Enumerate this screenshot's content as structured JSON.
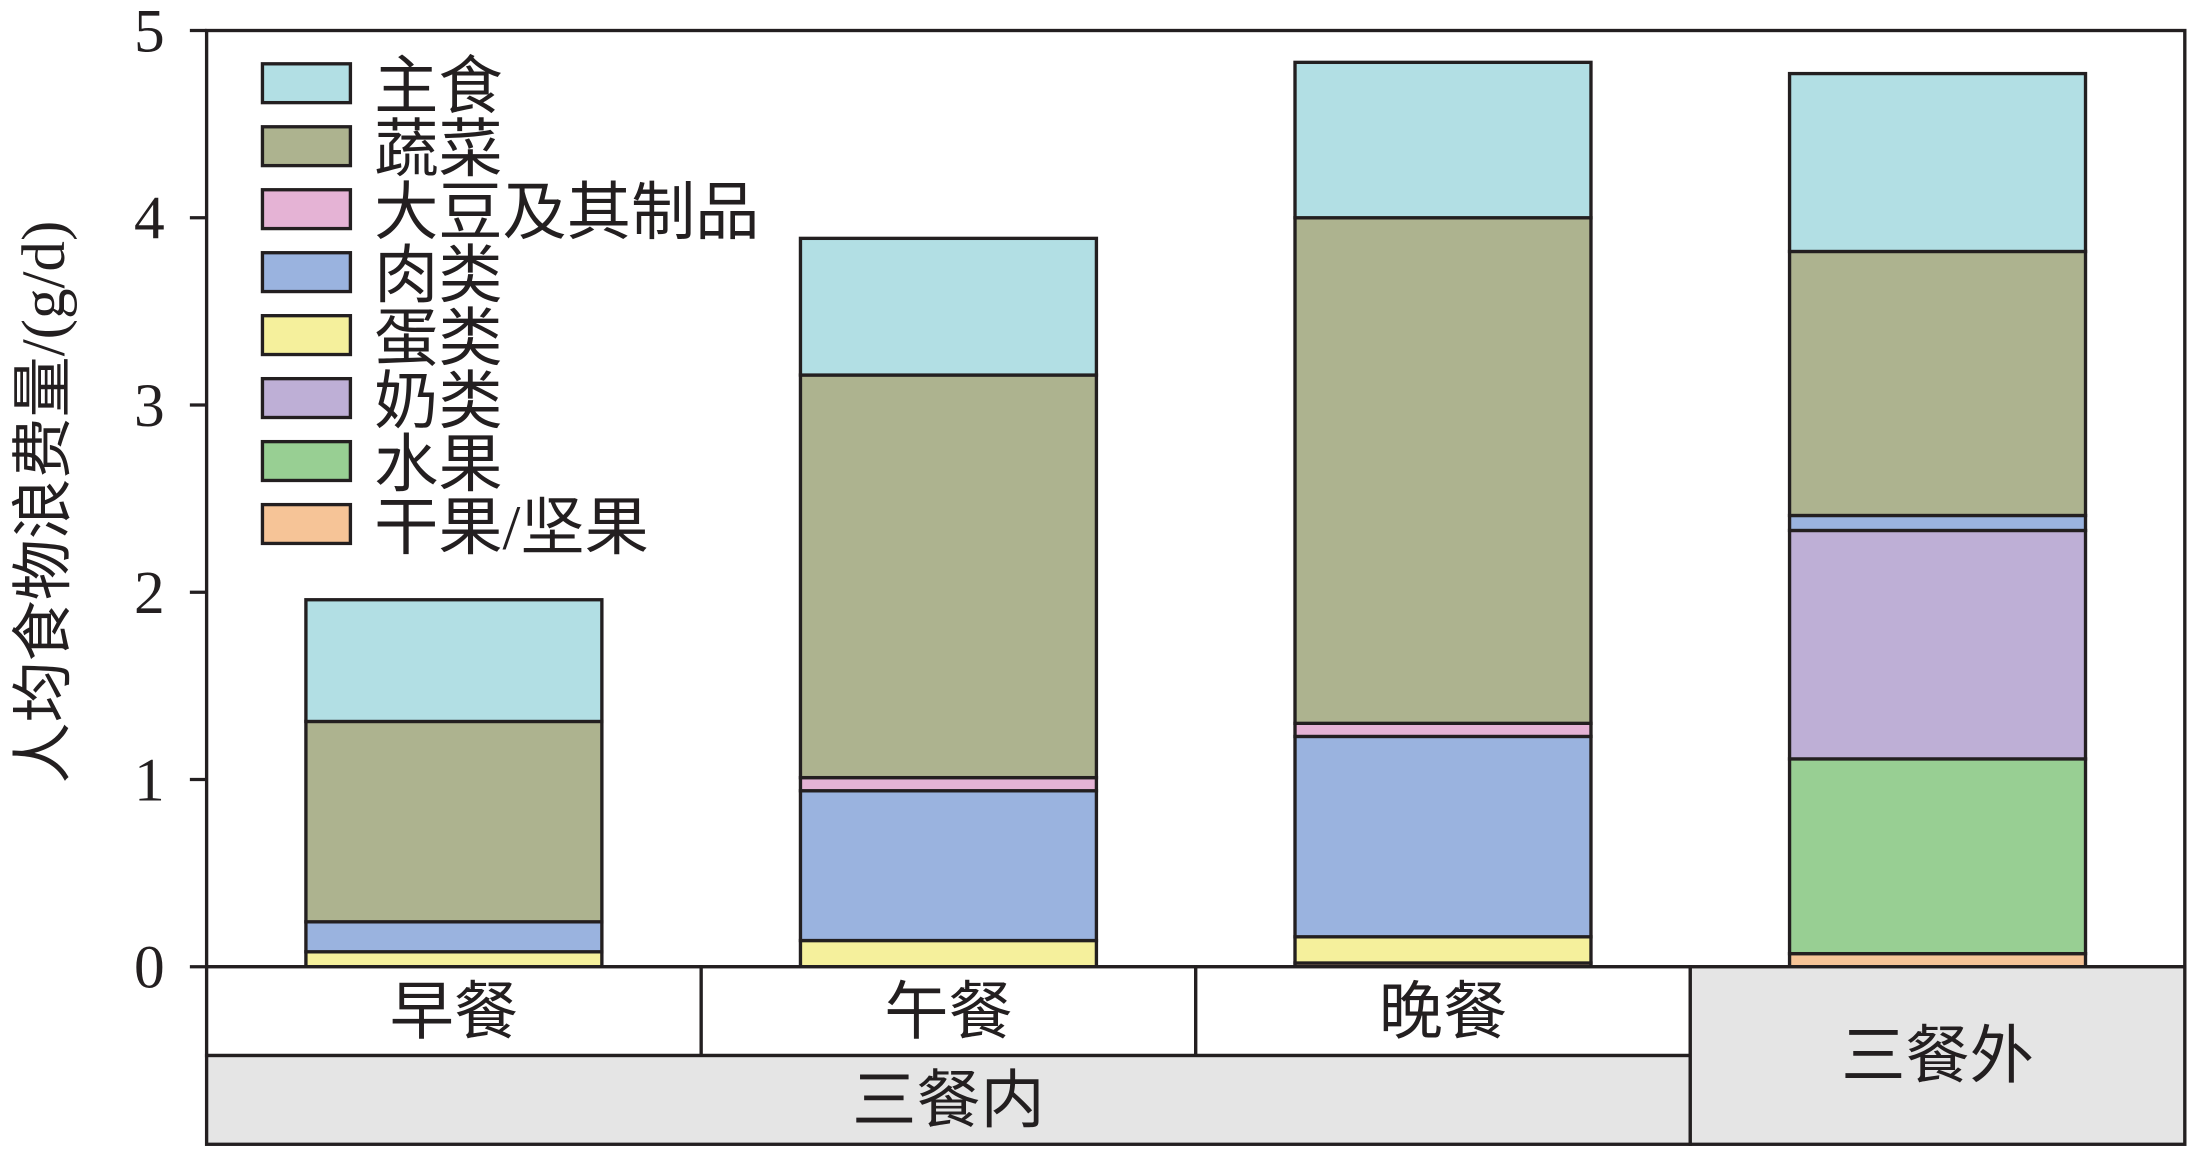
{
  "chart_data": {
    "type": "bar",
    "stacked": true,
    "categories": [
      "早餐",
      "午餐",
      "晚餐",
      "三餐外"
    ],
    "groups": [
      {
        "label": "三餐内",
        "span": 3
      }
    ],
    "xlabel": "",
    "ylabel": "人均食物浪费量/(g/d)",
    "ylim": [
      0,
      5
    ],
    "yticks": [
      0,
      1,
      2,
      3,
      4,
      5
    ],
    "grid": false,
    "legend": "top-left",
    "colors": {
      "table_group_fill": "#e5e5e5",
      "stroke": "#231f20"
    },
    "series": [
      {
        "name": "主食",
        "color": "#b2dfe4",
        "values": [
          0.65,
          0.73,
          0.83,
          0.95
        ]
      },
      {
        "name": "蔬菜",
        "color": "#adb38f",
        "values": [
          1.07,
          2.15,
          2.7,
          1.41
        ]
      },
      {
        "name": "大豆及其制品",
        "color": "#e5b3d5",
        "values": [
          0,
          0.07,
          0.07,
          0
        ]
      },
      {
        "name": "肉类",
        "color": "#9ab3df",
        "values": [
          0.16,
          0.8,
          1.07,
          0.08
        ]
      },
      {
        "name": "蛋类",
        "color": "#f5f09c",
        "values": [
          0.08,
          0.14,
          0.14,
          0
        ]
      },
      {
        "name": "奶类",
        "color": "#beafd6",
        "values": [
          0,
          0,
          0,
          1.22
        ]
      },
      {
        "name": "水果",
        "color": "#98cf93",
        "values": [
          0,
          0,
          0,
          1.04
        ]
      },
      {
        "name": "干果/坚果",
        "color": "#f6c497",
        "values": [
          0,
          0,
          0.02,
          0.07
        ]
      }
    ]
  }
}
